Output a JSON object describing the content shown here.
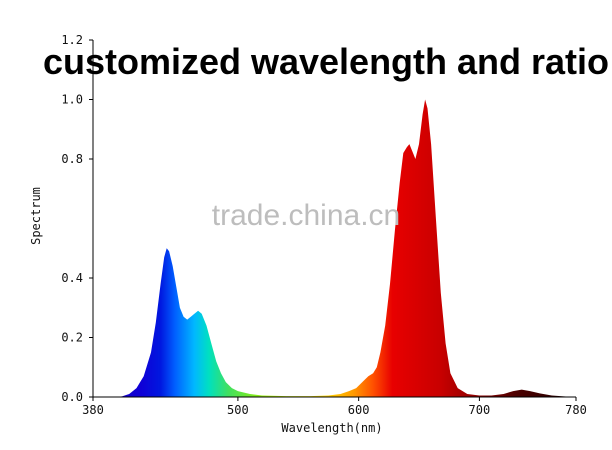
{
  "chart_data": {
    "type": "area",
    "title": "customized wavelength and ratio",
    "xlabel": "Wavelength(nm)",
    "ylabel": "Spectrum",
    "xlim": [
      380,
      780
    ],
    "ylim": [
      0,
      1.2
    ],
    "x_ticks": [
      "380",
      "500",
      "600",
      "700",
      "780"
    ],
    "y_ticks": [
      "0.0",
      "0.2",
      "0.4",
      "0.8",
      "1.0",
      "1.2"
    ],
    "grid": false,
    "watermark": "trade.china.cn",
    "series": [
      {
        "points": [
          [
            398,
            0
          ],
          [
            404,
            0.002
          ],
          [
            410,
            0.01
          ],
          [
            416,
            0.03
          ],
          [
            422,
            0.07
          ],
          [
            428,
            0.15
          ],
          [
            432,
            0.25
          ],
          [
            436,
            0.38
          ],
          [
            439,
            0.47
          ],
          [
            441,
            0.5
          ],
          [
            443,
            0.49
          ],
          [
            446,
            0.44
          ],
          [
            449,
            0.37
          ],
          [
            452,
            0.3
          ],
          [
            455,
            0.27
          ],
          [
            458,
            0.26
          ],
          [
            461,
            0.27
          ],
          [
            464,
            0.28
          ],
          [
            467,
            0.29
          ],
          [
            470,
            0.28
          ],
          [
            474,
            0.24
          ],
          [
            478,
            0.18
          ],
          [
            482,
            0.12
          ],
          [
            486,
            0.08
          ],
          [
            490,
            0.05
          ],
          [
            495,
            0.03
          ],
          [
            500,
            0.02
          ],
          [
            510,
            0.01
          ],
          [
            520,
            0.005
          ],
          [
            540,
            0.003
          ],
          [
            560,
            0.003
          ],
          [
            575,
            0.005
          ],
          [
            585,
            0.01
          ],
          [
            592,
            0.02
          ],
          [
            598,
            0.03
          ],
          [
            603,
            0.05
          ],
          [
            608,
            0.07
          ],
          [
            612,
            0.08
          ],
          [
            615,
            0.1
          ],
          [
            618,
            0.15
          ],
          [
            622,
            0.24
          ],
          [
            626,
            0.38
          ],
          [
            630,
            0.56
          ],
          [
            634,
            0.72
          ],
          [
            637,
            0.82
          ],
          [
            640,
            0.84
          ],
          [
            642,
            0.85
          ],
          [
            645,
            0.82
          ],
          [
            647,
            0.8
          ],
          [
            650,
            0.85
          ],
          [
            653,
            0.95
          ],
          [
            655,
            1.0
          ],
          [
            657,
            0.97
          ],
          [
            660,
            0.85
          ],
          [
            664,
            0.6
          ],
          [
            668,
            0.35
          ],
          [
            672,
            0.18
          ],
          [
            676,
            0.08
          ],
          [
            682,
            0.03
          ],
          [
            690,
            0.01
          ],
          [
            700,
            0.005
          ],
          [
            710,
            0.005
          ],
          [
            720,
            0.01
          ],
          [
            728,
            0.02
          ],
          [
            735,
            0.025
          ],
          [
            742,
            0.02
          ],
          [
            750,
            0.012
          ],
          [
            760,
            0.005
          ],
          [
            770,
            0.002
          ],
          [
            778,
            0.0
          ]
        ]
      }
    ]
  }
}
